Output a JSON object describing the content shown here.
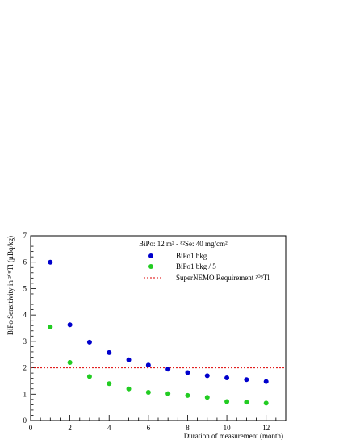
{
  "chart_data": {
    "type": "scatter",
    "title": "",
    "xlabel": "Duration of measurement (month)",
    "ylabel": "BiPo Sensitivity in ²⁰⁸Tl (µBq/kg)",
    "xlim": [
      0,
      13
    ],
    "ylim": [
      0,
      7
    ],
    "x_ticks": [
      0,
      2,
      4,
      6,
      8,
      10,
      12
    ],
    "y_ticks": [
      0,
      1,
      2,
      3,
      4,
      5,
      6,
      7
    ],
    "grid": false,
    "legend_header": "BiPo: 12 m² - ⁸²Se: 40 mg/cm²",
    "legend_position": "top-right",
    "series": [
      {
        "name": "BiPo1 bkg",
        "color": "#0000cc",
        "marker": "circle",
        "x": [
          1,
          2,
          3,
          4,
          5,
          6,
          7,
          8,
          9,
          10,
          11,
          12
        ],
        "y": [
          6.0,
          3.63,
          2.97,
          2.57,
          2.3,
          2.1,
          1.95,
          1.82,
          1.7,
          1.62,
          1.55,
          1.48
        ]
      },
      {
        "name": "BiPo1 bkg / 5",
        "color": "#22cc22",
        "marker": "circle",
        "x": [
          1,
          2,
          3,
          4,
          5,
          6,
          7,
          8,
          9,
          10,
          11,
          12
        ],
        "y": [
          3.55,
          2.2,
          1.67,
          1.4,
          1.2,
          1.07,
          1.02,
          0.95,
          0.88,
          0.72,
          0.7,
          0.66
        ]
      }
    ],
    "reference_line": {
      "name": "SuperNEMO Requirement ²⁰⁸Tl",
      "y": 2.0,
      "color": "#dd0000",
      "style": "dashed"
    }
  }
}
